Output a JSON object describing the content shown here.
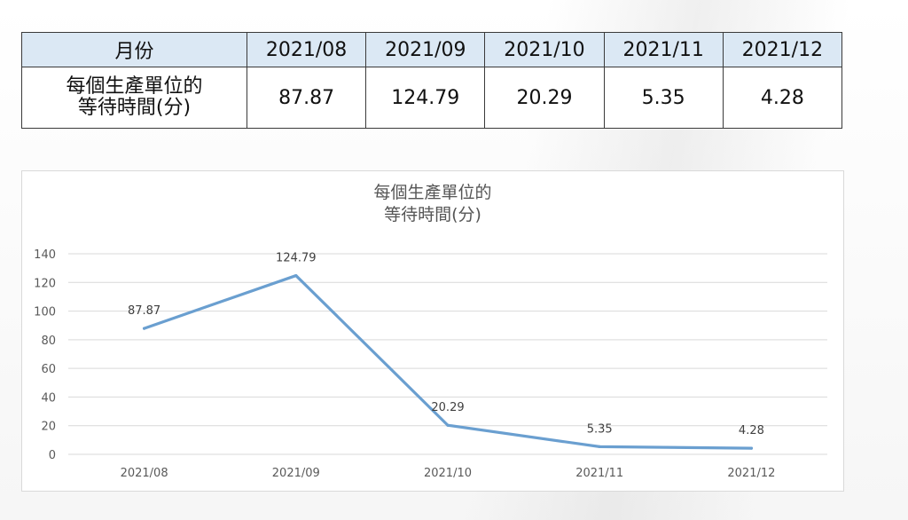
{
  "table": {
    "header_label": "月份",
    "row_label_line1": "每個生產單位的",
    "row_label_line2": "等待時間(分)",
    "months": [
      "2021/08",
      "2021/09",
      "2021/10",
      "2021/11",
      "2021/12"
    ],
    "values": [
      "87.87",
      "124.79",
      "20.29",
      "5.35",
      "4.28"
    ]
  },
  "chart_data": {
    "type": "line",
    "title_line1": "每個生產單位的",
    "title_line2": "等待時間(分)",
    "categories": [
      "2021/08",
      "2021/09",
      "2021/10",
      "2021/11",
      "2021/12"
    ],
    "series": [
      {
        "values": [
          87.87,
          124.79,
          20.29,
          5.35,
          4.28
        ]
      }
    ],
    "data_labels": [
      "87.87",
      "124.79",
      "20.29",
      "5.35",
      "4.28"
    ],
    "ylim": [
      0,
      140
    ],
    "yticks": [
      0,
      20,
      40,
      60,
      80,
      100,
      120,
      140
    ],
    "grid": true,
    "line_color": "#6a9fd0",
    "grid_color": "#d9d9d9"
  }
}
